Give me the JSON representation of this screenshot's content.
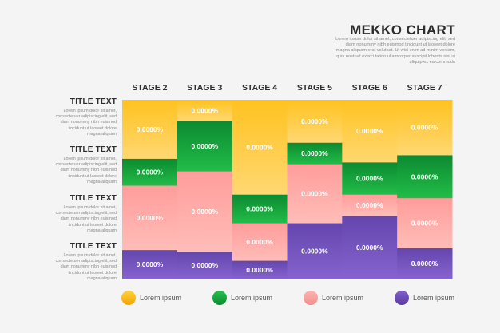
{
  "header": {
    "title": "MEKKO CHART",
    "description_lines": [
      "Lorem ipsum dolor sit amet, consectetuer adipiscing elit, sed",
      "diam nonummy nibh euismod tincidunt ut laoreet dolore",
      "magna aliquam erat volutpat. Ut wisi enim ad minim veniam,",
      "quis nostrud exerci tation ullamcorper suscipit lobortis nisl ut",
      "aliquip ex ea commodo"
    ]
  },
  "rows": [
    {
      "title": "TITLE TEXT",
      "desc_lines": [
        "Lorem ipsum dolor sit amet,",
        "consectetuer adipiscing elit, sed",
        "diam nonummy nibh euismod",
        "tincidunt ut laoreet dolore",
        "magna aliquam"
      ]
    },
    {
      "title": "TITLE TEXT",
      "desc_lines": [
        "Lorem ipsum dolor sit amet,",
        "consectetuer adipiscing elit, sed",
        "diam nonummy nibh euismod",
        "tincidunt ut laoreet dolore",
        "magna aliquam"
      ]
    },
    {
      "title": "TITLE TEXT",
      "desc_lines": [
        "Lorem ipsum dolor sit amet,",
        "consectetuer adipiscing elit, sed",
        "diam nonummy nibh euismod",
        "tincidunt ut laoreet dolore",
        "magna aliquam"
      ]
    },
    {
      "title": "TITLE TEXT",
      "desc_lines": [
        "Lorem ipsum dolor sit amet,",
        "consectetuer adipiscing elit, sed",
        "diam nonummy nibh euismod",
        "tincidunt ut laoreet dolore",
        "magna aliquam"
      ]
    }
  ],
  "legend": [
    {
      "label": "Lorem ipsum",
      "color": "#ffc21f"
    },
    {
      "label": "Lorem ipsum",
      "color": "#16a43d"
    },
    {
      "label": "Lorem ipsum",
      "color": "#f9a2a0"
    },
    {
      "label": "Lorem ipsum",
      "color": "#6e4cb4"
    }
  ],
  "chart_data": {
    "type": "bar",
    "categories": [
      "STAGE 2",
      "STAGE 3",
      "STAGE 4",
      "STAGE 5",
      "STAGE 6",
      "STAGE 7"
    ],
    "series": [
      {
        "values": [
          33,
          12,
          53,
          24,
          35,
          31
        ],
        "labels": [
          "0.0000%",
          "0.0000%",
          "0.0000%",
          "0.0000%",
          "0.0000%",
          "0.0000%"
        ],
        "color": "#ffc21f"
      },
      {
        "values": [
          15,
          28,
          16,
          12,
          18,
          24
        ],
        "labels": [
          "0.0000%",
          "0.0000%",
          "0.0000%",
          "0.0000%",
          "0.0000%",
          "0.0000%"
        ],
        "color": "#16a43d"
      },
      {
        "values": [
          36,
          45,
          21,
          33,
          12,
          28
        ],
        "labels": [
          "0.0000%",
          "0.0000%",
          "0.0000%",
          "0.0000%",
          "0.0000%",
          "0.0000%"
        ],
        "color": "#f9a2a0"
      },
      {
        "values": [
          16,
          15,
          10,
          31,
          35,
          17
        ],
        "labels": [
          "0.0000%",
          "0.0000%",
          "0.0000%",
          "0.0000%",
          "0.0000%",
          "0.0000%"
        ],
        "color": "#6e4cb4"
      }
    ]
  }
}
